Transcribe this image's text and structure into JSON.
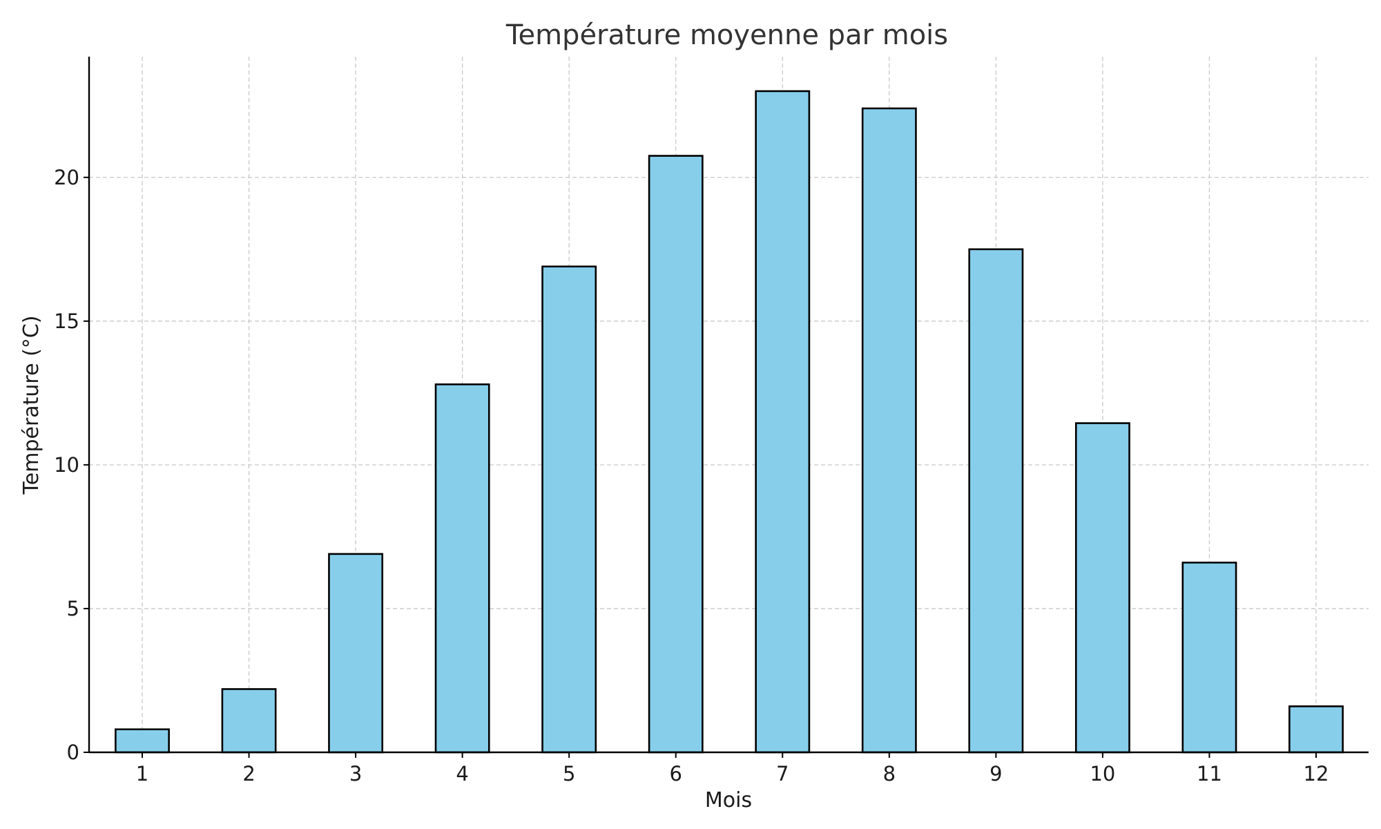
{
  "chart_data": {
    "type": "bar",
    "title": "Température moyenne par mois",
    "xlabel": "Mois",
    "ylabel": "Température (°C)",
    "categories": [
      "1",
      "2",
      "3",
      "4",
      "5",
      "6",
      "7",
      "8",
      "9",
      "10",
      "11",
      "12"
    ],
    "values": [
      0.8,
      2.2,
      6.9,
      12.8,
      16.9,
      20.75,
      23.0,
      22.4,
      17.5,
      11.45,
      6.6,
      1.6
    ],
    "ylim": [
      0,
      24.2
    ],
    "yticks": [
      "0",
      "5",
      "10",
      "15",
      "20"
    ],
    "grid": true,
    "bar_color": "#87ceeb",
    "edge_color": "#000000"
  }
}
